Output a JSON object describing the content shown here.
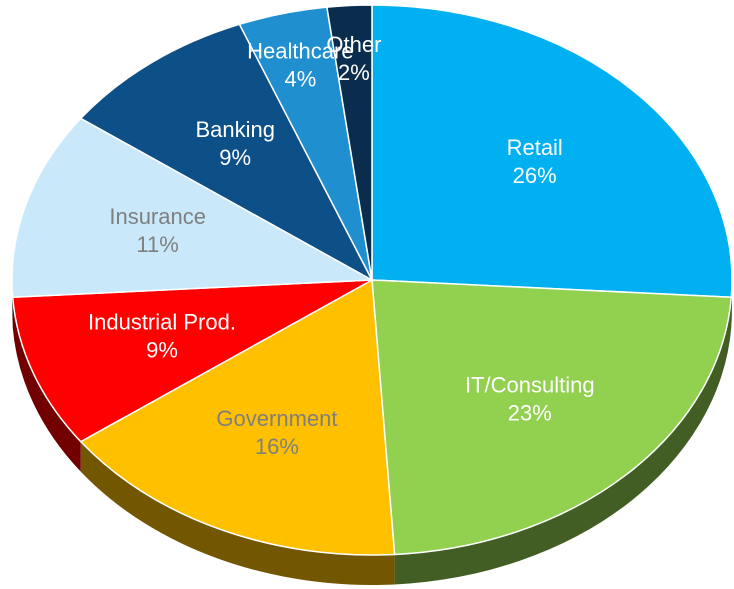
{
  "chart_data": {
    "type": "pie",
    "categories": [
      "Retail",
      "IT/Consulting",
      "Government",
      "Industrial Prod.",
      "Insurance",
      "Banking",
      "Healthcare",
      "Other"
    ],
    "values": [
      26,
      23,
      16,
      9,
      11,
      9,
      4,
      2
    ],
    "value_labels": [
      "26%",
      "23%",
      "16%",
      "9%",
      "11%",
      "9%",
      "4%",
      "2%"
    ],
    "colors": [
      "#00b0f0",
      "#92d050",
      "#ffc000",
      "#ff0000",
      "#c9e9fb",
      "#0d4f87",
      "#1f8fd0",
      "#0a2d4d"
    ]
  }
}
